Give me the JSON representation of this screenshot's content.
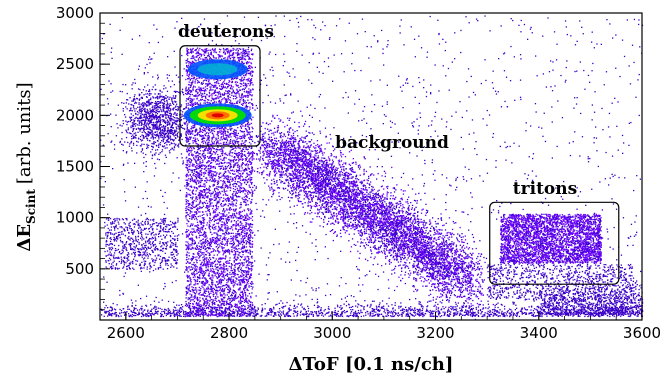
{
  "chart_data": {
    "type": "heatmap",
    "xlabel": "ΔToF [0.1 ns/ch]",
    "ylabel_main": "ΔE",
    "ylabel_sub": "Scint",
    "ylabel_unit": "[arb. units]",
    "xlim": [
      2550,
      3600
    ],
    "ylim": [
      0,
      3000
    ],
    "x_ticks": [
      2600,
      2800,
      3000,
      3200,
      3400,
      3600
    ],
    "y_ticks": [
      500,
      1000,
      1500,
      2000,
      2500,
      3000
    ],
    "grid": false,
    "colormap": [
      "#3a00c8",
      "#6a00ff",
      "#0050ff",
      "#00c8c8",
      "#00e000",
      "#ffe000",
      "#ff7000",
      "#e00000"
    ],
    "regions": [
      {
        "label": "deuterons",
        "box": {
          "x": [
            2705,
            2860
          ],
          "y": [
            1700,
            2680
          ]
        }
      },
      {
        "label": "background",
        "box": null
      },
      {
        "label": "tritons",
        "box": {
          "x": [
            3305,
            3555
          ],
          "y": [
            350,
            1150
          ]
        }
      }
    ]
  }
}
